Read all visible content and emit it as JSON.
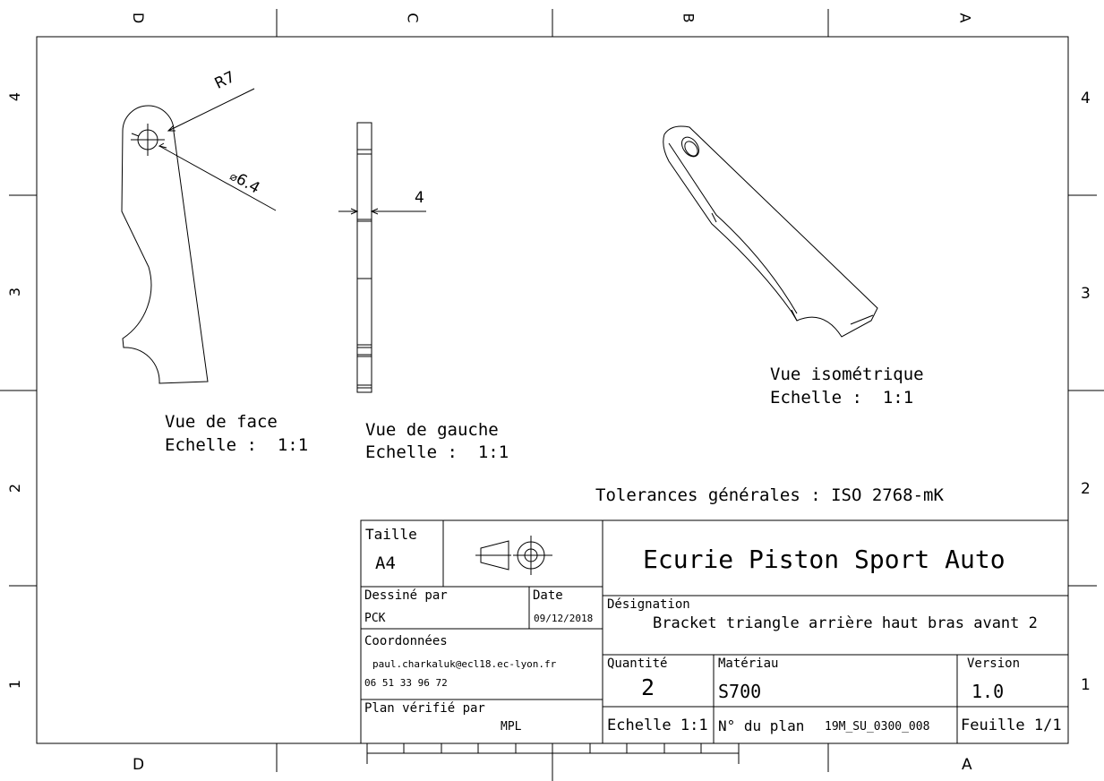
{
  "zones": {
    "top": [
      "D",
      "C",
      "B",
      "A"
    ],
    "bottom": [
      "D",
      "A"
    ],
    "left": [
      "4",
      "3",
      "2",
      "1"
    ],
    "right": [
      "4",
      "3",
      "2",
      "1"
    ]
  },
  "views": {
    "face": {
      "title": "Vue de face",
      "scale": "Echelle :  1:1"
    },
    "gauche": {
      "title": "Vue de gauche",
      "scale": "Echelle :  1:1"
    },
    "iso": {
      "title": "Vue isométrique",
      "scale": "Echelle :  1:1"
    }
  },
  "dimensions": {
    "radius": "R7",
    "diameter": "6.4",
    "thickness": "4"
  },
  "tolerances": "Tolerances générales : ISO 2768-mK",
  "title_block": {
    "size_label": "Taille",
    "size_value": "A4",
    "company": "Ecurie Piston Sport Auto",
    "drawn_by_label": "Dessiné par",
    "drawn_by_value": "PCK",
    "date_label": "Date",
    "date_value": "09/12/2018",
    "designation_label": "Désignation",
    "designation_value": "Bracket triangle arrière haut bras avant 2",
    "contact_label": "Coordonnées",
    "email": "paul.charkaluk@ecl18.ec-lyon.fr",
    "phone": "06 51 33 96 72",
    "quantity_label": "Quantité",
    "quantity_value": "2",
    "material_label": "Matériau",
    "material_value": "S700",
    "version_label": "Version",
    "version_value": "1.0",
    "checked_by_label": "Plan vérifié par",
    "checked_by_value": "MPL",
    "scale": "Echelle 1:1",
    "plan_label": "N° du plan",
    "plan_value": "19M_SU_0300_008",
    "sheet": "Feuille 1/1"
  }
}
